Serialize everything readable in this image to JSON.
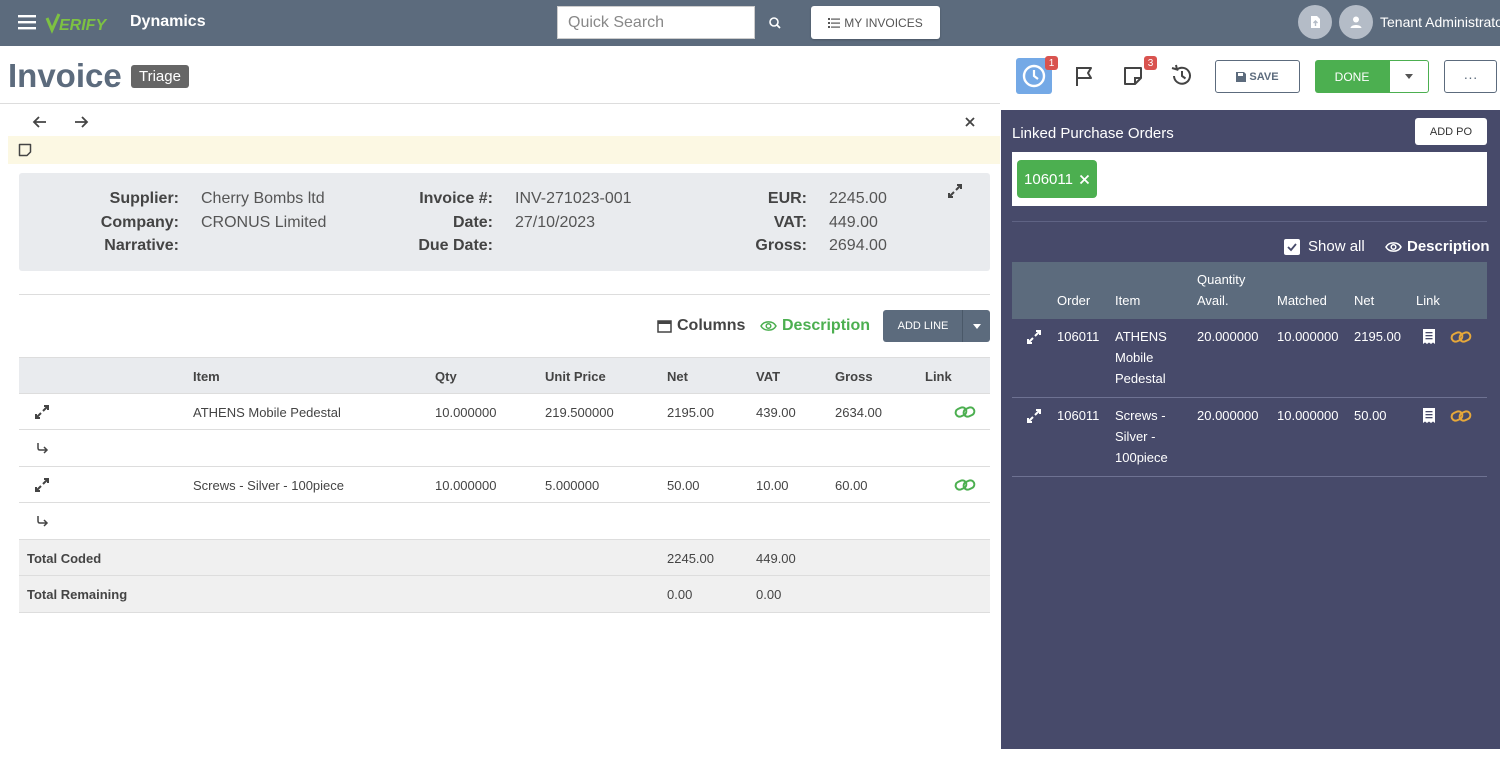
{
  "topbar": {
    "brand": "Dynamics",
    "logo_text": "VERIFY",
    "search_placeholder": "Quick Search",
    "my_invoices": "MY INVOICES",
    "user": "Tenant Administrator"
  },
  "header": {
    "title": "Invoice",
    "status": "Triage",
    "badges": {
      "clock": "1",
      "notes": "3"
    },
    "save": "SAVE",
    "done": "DONE",
    "more": "···"
  },
  "summary": {
    "supplier_label": "Supplier:",
    "supplier": "Cherry Bombs ltd",
    "company_label": "Company:",
    "company": "CRONUS Limited",
    "narrative_label": "Narrative:",
    "narrative": "",
    "invoice_no_label": "Invoice #:",
    "invoice_no": "INV-271023-001",
    "date_label": "Date:",
    "date": "27/10/2023",
    "due_date_label": "Due Date:",
    "due_date": "",
    "currency_label": "EUR:",
    "net": "2245.00",
    "vat_label": "VAT:",
    "vat": "449.00",
    "gross_label": "Gross:",
    "gross": "2694.00"
  },
  "toolbar": {
    "columns": "Columns",
    "description": "Description",
    "add_line": "ADD LINE"
  },
  "lines": {
    "headers": {
      "item": "Item",
      "qty": "Qty",
      "unit_price": "Unit Price",
      "net": "Net",
      "vat": "VAT",
      "gross": "Gross",
      "link": "Link"
    },
    "rows": [
      {
        "item": "ATHENS Mobile Pedestal",
        "qty": "10.000000",
        "unit_price": "219.500000",
        "net": "2195.00",
        "vat": "439.00",
        "gross": "2634.00"
      },
      {
        "item": "Screws - Silver - 100piece",
        "qty": "10.000000",
        "unit_price": "5.000000",
        "net": "50.00",
        "vat": "10.00",
        "gross": "60.00"
      }
    ],
    "total_coded": {
      "label": "Total Coded",
      "net": "2245.00",
      "vat": "449.00"
    },
    "total_remaining": {
      "label": "Total Remaining",
      "net": "0.00",
      "vat": "0.00"
    }
  },
  "po_panel": {
    "title": "Linked Purchase Orders",
    "add_po": "ADD PO",
    "linked_po": "106011",
    "show_all": "Show all",
    "show_all_checked": true,
    "description": "Description",
    "headers": {
      "order": "Order",
      "item": "Item",
      "qty_avail_1": "Quantity",
      "qty_avail_2": "Avail.",
      "matched": "Matched",
      "net": "Net",
      "link": "Link"
    },
    "rows": [
      {
        "order": "106011",
        "item_lines": [
          "ATHENS",
          "Mobile",
          "Pedestal"
        ],
        "qty_avail": "20.000000",
        "matched": "10.000000",
        "net": "2195.00"
      },
      {
        "order": "106011",
        "item_lines": [
          "Screws -",
          "Silver -",
          "100piece"
        ],
        "qty_avail": "20.000000",
        "matched": "10.000000",
        "net": "50.00"
      }
    ]
  },
  "colors": {
    "nav": "#5c6b7d",
    "accent_green": "#4caf50",
    "panel": "#474a6a",
    "link_gold": "#e6a83a",
    "active_blue": "#74a9e6"
  }
}
